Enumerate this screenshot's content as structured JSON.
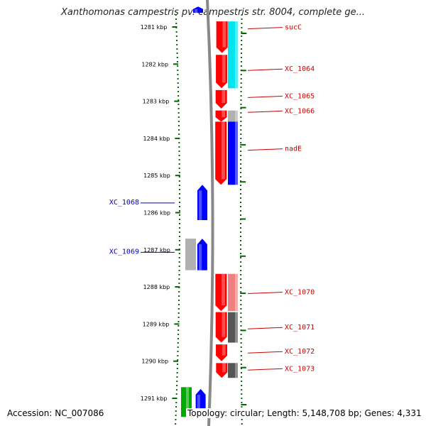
{
  "title": "Xanthomonas campestris pv. campestris str. 8004, complete ge...",
  "footer": {
    "accession": "Accession: NC_007086",
    "topology": "Topology: circular; Length: 5,148,708 bp; Genes: 4,331"
  },
  "colors": {
    "forward_cds": "#ff0000",
    "reverse_cds": "#0000ff",
    "rna": "#00aa00",
    "cog_cyan": "#00e5ee",
    "cog_blue": "#0000ff",
    "cog_gray": "#b0b0b0",
    "cog_pink": "#f08080",
    "cog_dark": "#555555",
    "scale_tick": "#006600",
    "backbone": "#888888",
    "label_forward": "#cc0000",
    "label_reverse": "#0000cc"
  },
  "scale": {
    "unit": "kbp",
    "ticks": [
      {
        "kbp": 1281,
        "label": "1281 kbp"
      },
      {
        "kbp": 1282,
        "label": "1282 kbp"
      },
      {
        "kbp": 1283,
        "label": "1283 kbp"
      },
      {
        "kbp": 1284,
        "label": "1284 kbp"
      },
      {
        "kbp": 1285,
        "label": "1285 kbp"
      },
      {
        "kbp": 1286,
        "label": "1286 kbp"
      },
      {
        "kbp": 1287,
        "label": "1287 kbp"
      },
      {
        "kbp": 1288,
        "label": "1288 kbp"
      },
      {
        "kbp": 1289,
        "label": "1289 kbp"
      },
      {
        "kbp": 1290,
        "label": "1290 kbp"
      },
      {
        "kbp": 1291,
        "label": "1291 kbp"
      }
    ]
  },
  "features": [
    {
      "track": "reverse_cds",
      "start": 1280.45,
      "end": 1280.62,
      "label": ""
    },
    {
      "track": "forward_cds",
      "start": 1280.85,
      "end": 1281.7,
      "label": ""
    },
    {
      "track": "forward_cds",
      "start": 1281.75,
      "end": 1282.65,
      "label": ""
    },
    {
      "track": "forward_cds",
      "start": 1282.7,
      "end": 1283.2,
      "label": ""
    },
    {
      "track": "forward_cds",
      "start": 1283.25,
      "end": 1283.55,
      "label": ""
    },
    {
      "track": "forward_cds",
      "start": 1283.55,
      "end": 1285.25,
      "label": ""
    },
    {
      "track": "reverse_cds",
      "start": 1285.25,
      "end": 1286.2,
      "label": ""
    },
    {
      "track": "reverse_cds",
      "start": 1286.7,
      "end": 1287.55,
      "label": ""
    },
    {
      "track": "gray_rev",
      "start": 1286.7,
      "end": 1287.55,
      "label": ""
    },
    {
      "track": "forward_cds",
      "start": 1287.65,
      "end": 1288.65,
      "label": ""
    },
    {
      "track": "forward_cds",
      "start": 1288.68,
      "end": 1289.5,
      "label": ""
    },
    {
      "track": "forward_cds",
      "start": 1289.55,
      "end": 1290.0,
      "label": ""
    },
    {
      "track": "forward_cds",
      "start": 1290.05,
      "end": 1290.45,
      "label": ""
    },
    {
      "track": "reverse_cds",
      "start": 1290.75,
      "end": 1291.5,
      "label": ""
    },
    {
      "track": "rna",
      "start": 1290.7,
      "end": 1291.5,
      "label": ""
    }
  ],
  "cog_blocks": [
    {
      "color": "cog_cyan",
      "start": 1280.85,
      "end": 1282.65
    },
    {
      "color": "cog_gray",
      "start": 1283.25,
      "end": 1283.55
    },
    {
      "color": "cog_blue",
      "start": 1283.55,
      "end": 1285.25
    },
    {
      "color": "cog_pink",
      "start": 1287.65,
      "end": 1288.65
    },
    {
      "color": "cog_dark",
      "start": 1288.68,
      "end": 1289.5
    },
    {
      "color": "cog_dark",
      "start": 1290.05,
      "end": 1290.45
    }
  ],
  "labels_right": [
    {
      "text": "sucC",
      "kbp": 1281.05
    },
    {
      "text": "XC_1064",
      "kbp": 1282.17
    },
    {
      "text": "XC_1065",
      "kbp": 1282.9
    },
    {
      "text": "XC_1066",
      "kbp": 1283.3
    },
    {
      "text": "nadE",
      "kbp": 1284.32
    },
    {
      "text": "XC_1070",
      "kbp": 1288.18
    },
    {
      "text": "XC_1071",
      "kbp": 1289.13
    },
    {
      "text": "XC_1072",
      "kbp": 1289.78
    },
    {
      "text": "XC_1073",
      "kbp": 1290.24
    }
  ],
  "labels_left": [
    {
      "text": "XC_1068",
      "kbp": 1285.72
    },
    {
      "text": "XC_1069",
      "kbp": 1287.05
    }
  ]
}
